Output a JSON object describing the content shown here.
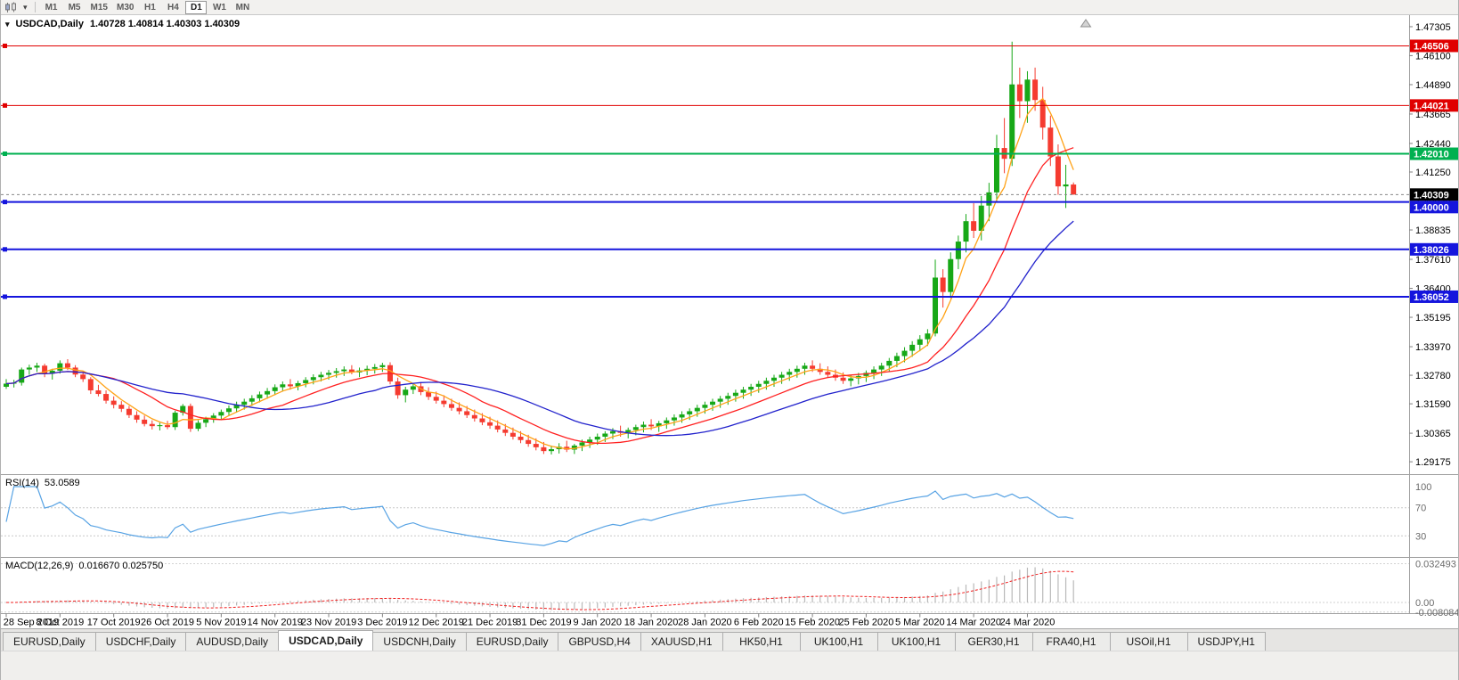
{
  "toolbar": {
    "timeframes": [
      "M1",
      "M5",
      "M15",
      "M30",
      "H1",
      "H4",
      "D1",
      "W1",
      "MN"
    ],
    "active_timeframe": "D1"
  },
  "chart_header": {
    "symbol": "USDCAD,Daily",
    "ohlc": "1.40728 1.40814 1.40303 1.40309"
  },
  "indicators": {
    "rsi": {
      "name": "RSI(14)",
      "value": "53.0589",
      "axis_labels": [
        "100",
        "70",
        "30"
      ],
      "axis_values": [
        100,
        70,
        30
      ],
      "level_lines": [
        70,
        30
      ],
      "line_color": "#58a3e4"
    },
    "macd": {
      "name": "MACD(12,26,9)",
      "value": "0.016670 0.025750",
      "axis_labels": [
        "0.032493",
        "0.00",
        "-0.008084"
      ],
      "axis_values": [
        0.032493,
        0,
        -0.008084
      ],
      "histogram_color": "#b9b9b9",
      "signal_color": "#f02020"
    }
  },
  "tabs": {
    "items": [
      "EURUSD,Daily",
      "USDCHF,Daily",
      "AUDUSD,Daily",
      "USDCAD,Daily",
      "USDCNH,Daily",
      "EURUSD,Daily",
      "GBPUSD,H4",
      "XAUUSD,H1",
      "HK50,H1",
      "UK100,H1",
      "UK100,H1",
      "GER30,H1",
      "FRA40,H1",
      "USOil,H1",
      "USDJPY,H1"
    ],
    "active_index": 3
  },
  "chart_data": {
    "type": "candlestick",
    "symbol": "USDCAD",
    "timeframe": "Daily",
    "price_range": [
      1.2866,
      1.476
    ],
    "price_axis_ticks": [
      1.47305,
      1.461,
      1.4489,
      1.43665,
      1.4244,
      1.4125,
      1.4003,
      1.38835,
      1.3761,
      1.364,
      1.35195,
      1.3397,
      1.3278,
      1.3159,
      1.30365,
      1.29175
    ],
    "x_labels": [
      "28 Sep 2019",
      "8 Oct 2019",
      "17 Oct 2019",
      "26 Oct 2019",
      "5 Nov 2019",
      "14 Nov 2019",
      "23 Nov 2019",
      "3 Dec 2019",
      "12 Dec 2019",
      "21 Dec 2019",
      "31 Dec 2019",
      "9 Jan 2020",
      "18 Jan 2020",
      "28 Jan 2020",
      "6 Feb 2020",
      "15 Feb 2020",
      "25 Feb 2020",
      "5 Mar 2020",
      "14 Mar 2020",
      "24 Mar 2020"
    ],
    "candles_per_label": 7,
    "horizontal_lines": [
      {
        "price": 1.46506,
        "label": "1.46506",
        "color": "#e00000",
        "width": 1
      },
      {
        "price": 1.44021,
        "label": "1.44021",
        "color": "#e00000",
        "width": 1
      },
      {
        "price": 1.4201,
        "label": "1.42010",
        "color": "#00b050",
        "width": 2
      },
      {
        "price": 1.4,
        "label": "1.40000",
        "color": "#1515dd",
        "width": 2
      },
      {
        "price": 1.38026,
        "label": "1.38026",
        "color": "#1515dd",
        "width": 2
      },
      {
        "price": 1.36052,
        "label": "1.36052",
        "color": "#1515dd",
        "width": 2
      }
    ],
    "current_price": {
      "value": 1.40309,
      "label": "1.40309",
      "color": "#000000"
    },
    "moving_averages": [
      {
        "period": 5,
        "color": "#ffa216"
      },
      {
        "period": 13,
        "color": "#ff2020"
      },
      {
        "period": 25,
        "color": "#2222cc"
      }
    ],
    "candle_colors": {
      "up": "#17a817",
      "down": "#f53b30"
    },
    "candles": [
      [
        1.323,
        1.3262,
        1.3221,
        1.3243
      ],
      [
        1.3243,
        1.3259,
        1.3227,
        1.3247
      ],
      [
        1.3247,
        1.331,
        1.3235,
        1.3302
      ],
      [
        1.3302,
        1.3322,
        1.328,
        1.331
      ],
      [
        1.331,
        1.333,
        1.3292,
        1.3318
      ],
      [
        1.3318,
        1.3326,
        1.327,
        1.3285
      ],
      [
        1.3285,
        1.3305,
        1.326,
        1.3297
      ],
      [
        1.3297,
        1.334,
        1.3285,
        1.3328
      ],
      [
        1.3328,
        1.3345,
        1.33,
        1.331
      ],
      [
        1.331,
        1.332,
        1.327,
        1.3281
      ],
      [
        1.3281,
        1.3295,
        1.325,
        1.3262
      ],
      [
        1.3262,
        1.327,
        1.32,
        1.3215
      ],
      [
        1.3215,
        1.3238,
        1.319,
        1.32
      ],
      [
        1.32,
        1.3215,
        1.316,
        1.3172
      ],
      [
        1.3172,
        1.319,
        1.314,
        1.3155
      ],
      [
        1.3155,
        1.317,
        1.3125,
        1.3138
      ],
      [
        1.3138,
        1.315,
        1.31,
        1.3112
      ],
      [
        1.3112,
        1.3128,
        1.308,
        1.3093
      ],
      [
        1.3093,
        1.311,
        1.3065,
        1.3075
      ],
      [
        1.3075,
        1.309,
        1.3052,
        1.3066
      ],
      [
        1.3066,
        1.308,
        1.3048,
        1.307
      ],
      [
        1.307,
        1.3088,
        1.3053,
        1.3062
      ],
      [
        1.3062,
        1.313,
        1.305,
        1.3122
      ],
      [
        1.3122,
        1.3158,
        1.311,
        1.315
      ],
      [
        1.315,
        1.316,
        1.3042,
        1.3055
      ],
      [
        1.3055,
        1.309,
        1.3045,
        1.308
      ],
      [
        1.308,
        1.3105,
        1.3062,
        1.3095
      ],
      [
        1.3095,
        1.312,
        1.308,
        1.311
      ],
      [
        1.311,
        1.3135,
        1.3095,
        1.3125
      ],
      [
        1.3125,
        1.3152,
        1.3108,
        1.314
      ],
      [
        1.314,
        1.3168,
        1.3122,
        1.3155
      ],
      [
        1.3155,
        1.318,
        1.3135,
        1.3168
      ],
      [
        1.3168,
        1.3195,
        1.315,
        1.3182
      ],
      [
        1.3182,
        1.321,
        1.3165,
        1.3198
      ],
      [
        1.3198,
        1.3225,
        1.318,
        1.3212
      ],
      [
        1.3212,
        1.324,
        1.3195,
        1.3228
      ],
      [
        1.3228,
        1.3252,
        1.321,
        1.324
      ],
      [
        1.324,
        1.3262,
        1.3218,
        1.3232
      ],
      [
        1.3232,
        1.3255,
        1.3215,
        1.3245
      ],
      [
        1.3245,
        1.327,
        1.3228,
        1.3258
      ],
      [
        1.3258,
        1.3282,
        1.324,
        1.327
      ],
      [
        1.327,
        1.3292,
        1.3252,
        1.328
      ],
      [
        1.328,
        1.33,
        1.326,
        1.3288
      ],
      [
        1.3288,
        1.3308,
        1.3268,
        1.3295
      ],
      [
        1.3295,
        1.3315,
        1.3275,
        1.3302
      ],
      [
        1.3302,
        1.332,
        1.3282,
        1.329
      ],
      [
        1.329,
        1.331,
        1.327,
        1.3298
      ],
      [
        1.3298,
        1.3318,
        1.3278,
        1.3305
      ],
      [
        1.3305,
        1.3325,
        1.3285,
        1.3312
      ],
      [
        1.3312,
        1.333,
        1.3292,
        1.332
      ],
      [
        1.332,
        1.3332,
        1.324,
        1.3252
      ],
      [
        1.3252,
        1.3268,
        1.318,
        1.3195
      ],
      [
        1.3195,
        1.323,
        1.3165,
        1.3218
      ],
      [
        1.3218,
        1.3245,
        1.32,
        1.3232
      ],
      [
        1.3232,
        1.325,
        1.3195,
        1.3208
      ],
      [
        1.3208,
        1.3228,
        1.3175,
        1.3188
      ],
      [
        1.3188,
        1.321,
        1.316,
        1.3172
      ],
      [
        1.3172,
        1.3195,
        1.3145,
        1.3158
      ],
      [
        1.3158,
        1.318,
        1.313,
        1.3142
      ],
      [
        1.3142,
        1.3165,
        1.3115,
        1.3128
      ],
      [
        1.3128,
        1.315,
        1.31,
        1.3112
      ],
      [
        1.3112,
        1.3135,
        1.3085,
        1.3098
      ],
      [
        1.3098,
        1.312,
        1.307,
        1.3082
      ],
      [
        1.3082,
        1.3105,
        1.3055,
        1.3068
      ],
      [
        1.3068,
        1.309,
        1.304,
        1.3052
      ],
      [
        1.3052,
        1.3075,
        1.3025,
        1.3038
      ],
      [
        1.3038,
        1.306,
        1.301,
        1.3022
      ],
      [
        1.3022,
        1.3045,
        1.2995,
        1.3008
      ],
      [
        1.3008,
        1.303,
        1.298,
        1.2992
      ],
      [
        1.2992,
        1.3015,
        1.2965,
        1.2978
      ],
      [
        1.2978,
        1.3,
        1.295,
        1.2962
      ],
      [
        1.2962,
        1.2985,
        1.2948,
        1.297
      ],
      [
        1.297,
        1.2995,
        1.2952,
        1.298
      ],
      [
        1.298,
        1.3005,
        1.2958,
        1.2968
      ],
      [
        1.2968,
        1.2992,
        1.295,
        1.2985
      ],
      [
        1.2985,
        1.301,
        1.2962,
        1.2998
      ],
      [
        1.2998,
        1.3022,
        1.2975,
        1.301
      ],
      [
        1.301,
        1.3035,
        1.2988,
        1.3022
      ],
      [
        1.3022,
        1.3045,
        1.3,
        1.3035
      ],
      [
        1.3035,
        1.3058,
        1.3012,
        1.3045
      ],
      [
        1.3045,
        1.3068,
        1.3022,
        1.3038
      ],
      [
        1.3038,
        1.306,
        1.3015,
        1.305
      ],
      [
        1.305,
        1.3072,
        1.3028,
        1.3062
      ],
      [
        1.3062,
        1.3085,
        1.304,
        1.3072
      ],
      [
        1.3072,
        1.3095,
        1.305,
        1.3065
      ],
      [
        1.3065,
        1.3088,
        1.3042,
        1.3078
      ],
      [
        1.3078,
        1.3102,
        1.3055,
        1.309
      ],
      [
        1.309,
        1.3115,
        1.3068,
        1.3102
      ],
      [
        1.3102,
        1.3128,
        1.308,
        1.3115
      ],
      [
        1.3115,
        1.314,
        1.3092,
        1.3128
      ],
      [
        1.3128,
        1.3155,
        1.3105,
        1.3142
      ],
      [
        1.3142,
        1.3168,
        1.3118,
        1.3155
      ],
      [
        1.3155,
        1.318,
        1.313,
        1.3168
      ],
      [
        1.3168,
        1.3192,
        1.3142,
        1.318
      ],
      [
        1.318,
        1.3205,
        1.3155,
        1.3192
      ],
      [
        1.3192,
        1.3218,
        1.3168,
        1.3205
      ],
      [
        1.3205,
        1.323,
        1.318,
        1.3218
      ],
      [
        1.3218,
        1.3242,
        1.3192,
        1.323
      ],
      [
        1.323,
        1.3255,
        1.3205,
        1.3242
      ],
      [
        1.3242,
        1.3268,
        1.3218,
        1.3255
      ],
      [
        1.3255,
        1.328,
        1.323,
        1.3268
      ],
      [
        1.3268,
        1.3292,
        1.3242,
        1.328
      ],
      [
        1.328,
        1.3305,
        1.3255,
        1.3292
      ],
      [
        1.3292,
        1.3318,
        1.3268,
        1.3305
      ],
      [
        1.3305,
        1.333,
        1.328,
        1.3318
      ],
      [
        1.3318,
        1.334,
        1.3292,
        1.3305
      ],
      [
        1.3305,
        1.3328,
        1.328,
        1.3292
      ],
      [
        1.3292,
        1.3315,
        1.3268,
        1.328
      ],
      [
        1.328,
        1.3302,
        1.3255,
        1.3268
      ],
      [
        1.3268,
        1.329,
        1.3242,
        1.3255
      ],
      [
        1.3255,
        1.3278,
        1.3232,
        1.3265
      ],
      [
        1.3265,
        1.3288,
        1.324,
        1.3275
      ],
      [
        1.3275,
        1.3298,
        1.325,
        1.3288
      ],
      [
        1.3288,
        1.3315,
        1.3262,
        1.3302
      ],
      [
        1.3302,
        1.333,
        1.3275,
        1.3318
      ],
      [
        1.3318,
        1.335,
        1.3292,
        1.3338
      ],
      [
        1.3338,
        1.3372,
        1.3312,
        1.3358
      ],
      [
        1.3358,
        1.3395,
        1.3332,
        1.338
      ],
      [
        1.338,
        1.342,
        1.3355,
        1.3405
      ],
      [
        1.3405,
        1.3445,
        1.3378,
        1.3428
      ],
      [
        1.3428,
        1.347,
        1.34,
        1.3452
      ],
      [
        1.3452,
        1.376,
        1.344,
        1.3685
      ],
      [
        1.3685,
        1.372,
        1.356,
        1.3625
      ],
      [
        1.3625,
        1.379,
        1.36,
        1.3762
      ],
      [
        1.3762,
        1.386,
        1.372,
        1.3835
      ],
      [
        1.3835,
        1.395,
        1.379,
        1.392
      ],
      [
        1.392,
        1.3995,
        1.385,
        1.388
      ],
      [
        1.388,
        1.4025,
        1.384,
        1.3985
      ],
      [
        1.3985,
        1.408,
        1.392,
        1.404
      ],
      [
        1.404,
        1.428,
        1.4,
        1.4225
      ],
      [
        1.4225,
        1.435,
        1.412,
        1.418
      ],
      [
        1.418,
        1.4668,
        1.415,
        1.449
      ],
      [
        1.449,
        1.456,
        1.435,
        1.442
      ],
      [
        1.442,
        1.4545,
        1.433,
        1.451
      ],
      [
        1.451,
        1.456,
        1.438,
        1.4425
      ],
      [
        1.4425,
        1.448,
        1.426,
        1.431
      ],
      [
        1.431,
        1.436,
        1.415,
        1.419
      ],
      [
        1.419,
        1.424,
        1.403,
        1.4065
      ],
      [
        1.4065,
        1.4155,
        1.3975,
        1.4073
      ],
      [
        1.40728,
        1.40814,
        1.40303,
        1.40309
      ]
    ]
  }
}
